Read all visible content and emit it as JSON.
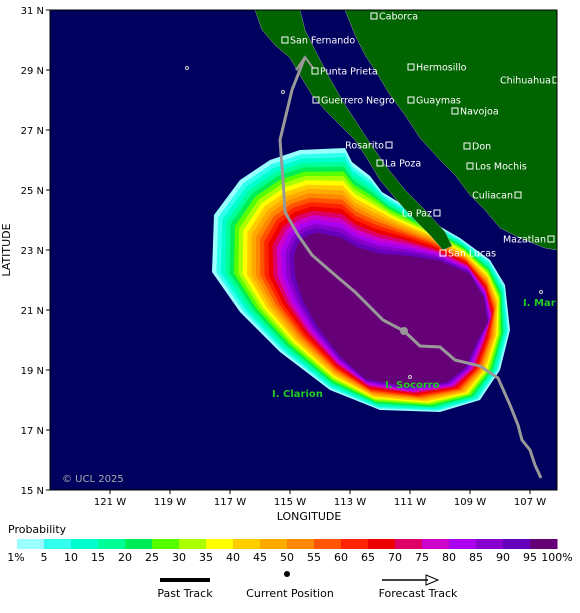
{
  "map": {
    "y_axis_label": "LATITUDE",
    "x_axis_label": "LONGITUDE",
    "lat_ticks": [
      "31 N",
      "29 N",
      "27 N",
      "25 N",
      "23 N",
      "21 N",
      "19 N",
      "17 N",
      "15 N"
    ],
    "lon_ticks": [
      "121 W",
      "119 W",
      "117 W",
      "115 W",
      "113 W",
      "111 W",
      "109 W",
      "107 W"
    ],
    "places": [
      "Caborca",
      "San Fernando",
      "Punta Prieta",
      "Hermosillo",
      "Chihuahua",
      "Guerrero Negro",
      "Guaymas",
      "Navojoa",
      "Rosarito",
      "Don",
      "La Poza",
      "Los Mochis",
      "Culiacan",
      "La Paz",
      "Mazatlan",
      "San Lucas"
    ],
    "islands": [
      "I. Clarion",
      "I. Socorro",
      "I. Maria"
    ],
    "credit": "© UCL 2025"
  },
  "legend": {
    "title": "Probability",
    "labels": [
      "1%",
      "5",
      "10",
      "15",
      "20",
      "25",
      "30",
      "35",
      "40",
      "45",
      "50",
      "55",
      "60",
      "65",
      "70",
      "75",
      "80",
      "85",
      "90",
      "95",
      "100%"
    ],
    "colors": [
      "#99ffff",
      "#33ffee",
      "#00ffcc",
      "#00ff99",
      "#00ee55",
      "#55ff00",
      "#aaff00",
      "#ffff00",
      "#ffcc00",
      "#ffaa00",
      "#ff8800",
      "#ff5500",
      "#ff2200",
      "#ee0000",
      "#dd0066",
      "#cc00cc",
      "#aa00ee",
      "#8800cc",
      "#6600bb",
      "#660077"
    ]
  },
  "key": [
    "Past Track",
    "Current Position",
    "Forecast Track"
  ]
}
